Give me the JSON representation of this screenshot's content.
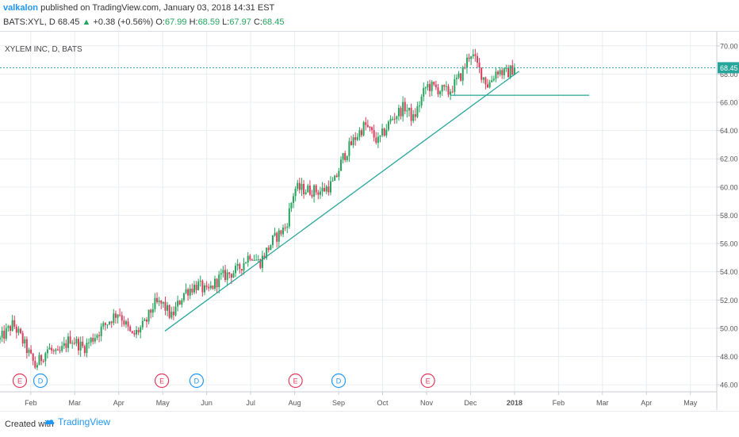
{
  "header": {
    "author": "valkalon",
    "published": "published on TradingView.com, January 03, 2018 14:31 EST",
    "symbol": "BATS:XYL, D",
    "price": "68.45",
    "arrow": "▲",
    "change": "+0.38 (+0.56%)",
    "o_label": "O:",
    "o_value": "67.99",
    "h_label": "H:",
    "h_value": "68.59",
    "l_label": "L:",
    "l_value": "67.97",
    "c_label": "C:",
    "c_value": "68.45"
  },
  "footer": {
    "created_with": "Created with",
    "brand": "TradingView"
  },
  "colors": {
    "up": "#22a65a",
    "down": "#e0395a",
    "trend": "#26a69a",
    "grid": "#e9edf1",
    "axis_text": "#555555",
    "earnings": "#e0395a",
    "dividend": "#2196f3",
    "brand": "#2196f3"
  },
  "chart_data": {
    "type": "candlestick",
    "title": "XYLEM INC, D, BATS",
    "y_ticks": [
      "70.00",
      "68.00",
      "66.00",
      "64.00",
      "62.00",
      "60.00",
      "58.00",
      "56.00",
      "54.00",
      "52.00",
      "50.00",
      "48.00",
      "46.00"
    ],
    "ylim": [
      45.5,
      71
    ],
    "x_ticks": [
      {
        "label": "Feb",
        "x": 1.0
      },
      {
        "label": "Mar",
        "x": 2.0
      },
      {
        "label": "Apr",
        "x": 3.0
      },
      {
        "label": "May",
        "x": 4.0
      },
      {
        "label": "Jun",
        "x": 5.0
      },
      {
        "label": "Jul",
        "x": 6.0
      },
      {
        "label": "Aug",
        "x": 7.0
      },
      {
        "label": "Sep",
        "x": 8.0
      },
      {
        "label": "Oct",
        "x": 9.0
      },
      {
        "label": "Nov",
        "x": 10.0
      },
      {
        "label": "Dec",
        "x": 11.0
      },
      {
        "label": "2018",
        "x": 12.0
      },
      {
        "label": "Feb",
        "x": 13.0
      },
      {
        "label": "Mar",
        "x": 14.0
      },
      {
        "label": "Apr",
        "x": 15.0
      },
      {
        "label": "May",
        "x": 16.0
      }
    ],
    "xlim": [
      0.3,
      16.6
    ],
    "last_price": "68.45",
    "last_price_level": 68.45,
    "anchors": [
      [
        0.3,
        49.2
      ],
      [
        0.6,
        50.3
      ],
      [
        0.8,
        49.2
      ],
      [
        1.1,
        47.3
      ],
      [
        1.4,
        48.6
      ],
      [
        1.6,
        48.0
      ],
      [
        1.9,
        49.3
      ],
      [
        2.2,
        48.6
      ],
      [
        2.5,
        49.6
      ],
      [
        2.8,
        50.6
      ],
      [
        3.0,
        51.2
      ],
      [
        3.3,
        49.4
      ],
      [
        3.6,
        50.3
      ],
      [
        3.8,
        51.7
      ],
      [
        4.0,
        51.7
      ],
      [
        4.2,
        50.8
      ],
      [
        4.5,
        52.6
      ],
      [
        4.8,
        53.1
      ],
      [
        5.0,
        52.5
      ],
      [
        5.3,
        53.6
      ],
      [
        5.7,
        54.1
      ],
      [
        6.0,
        55.3
      ],
      [
        6.2,
        54.6
      ],
      [
        6.5,
        56.2
      ],
      [
        6.8,
        57.2
      ],
      [
        7.0,
        59.9
      ],
      [
        7.3,
        59.8
      ],
      [
        7.6,
        59.7
      ],
      [
        7.9,
        60.3
      ],
      [
        8.1,
        62.1
      ],
      [
        8.4,
        63.6
      ],
      [
        8.6,
        64.4
      ],
      [
        8.9,
        63.2
      ],
      [
        9.2,
        64.8
      ],
      [
        9.5,
        65.7
      ],
      [
        9.7,
        64.8
      ],
      [
        10.0,
        67.2
      ],
      [
        10.3,
        66.9
      ],
      [
        10.5,
        66.7
      ],
      [
        10.8,
        68.0
      ],
      [
        11.0,
        69.6
      ],
      [
        11.2,
        68.3
      ],
      [
        11.4,
        67.2
      ],
      [
        11.6,
        68.3
      ],
      [
        11.8,
        68.0
      ],
      [
        12.0,
        68.45
      ]
    ],
    "trendlines": [
      {
        "name": "support",
        "from": [
          4.05,
          49.8
        ],
        "to": [
          12.1,
          68.2
        ]
      },
      {
        "name": "horizontal",
        "from": [
          10.55,
          66.5
        ],
        "to": [
          13.7,
          66.5
        ]
      }
    ],
    "events": [
      {
        "type": "E",
        "x": 0.75
      },
      {
        "type": "D",
        "x": 1.22
      },
      {
        "type": "E",
        "x": 3.98
      },
      {
        "type": "D",
        "x": 4.77
      },
      {
        "type": "E",
        "x": 7.02
      },
      {
        "type": "D",
        "x": 8.0
      },
      {
        "type": "E",
        "x": 10.03
      }
    ]
  }
}
